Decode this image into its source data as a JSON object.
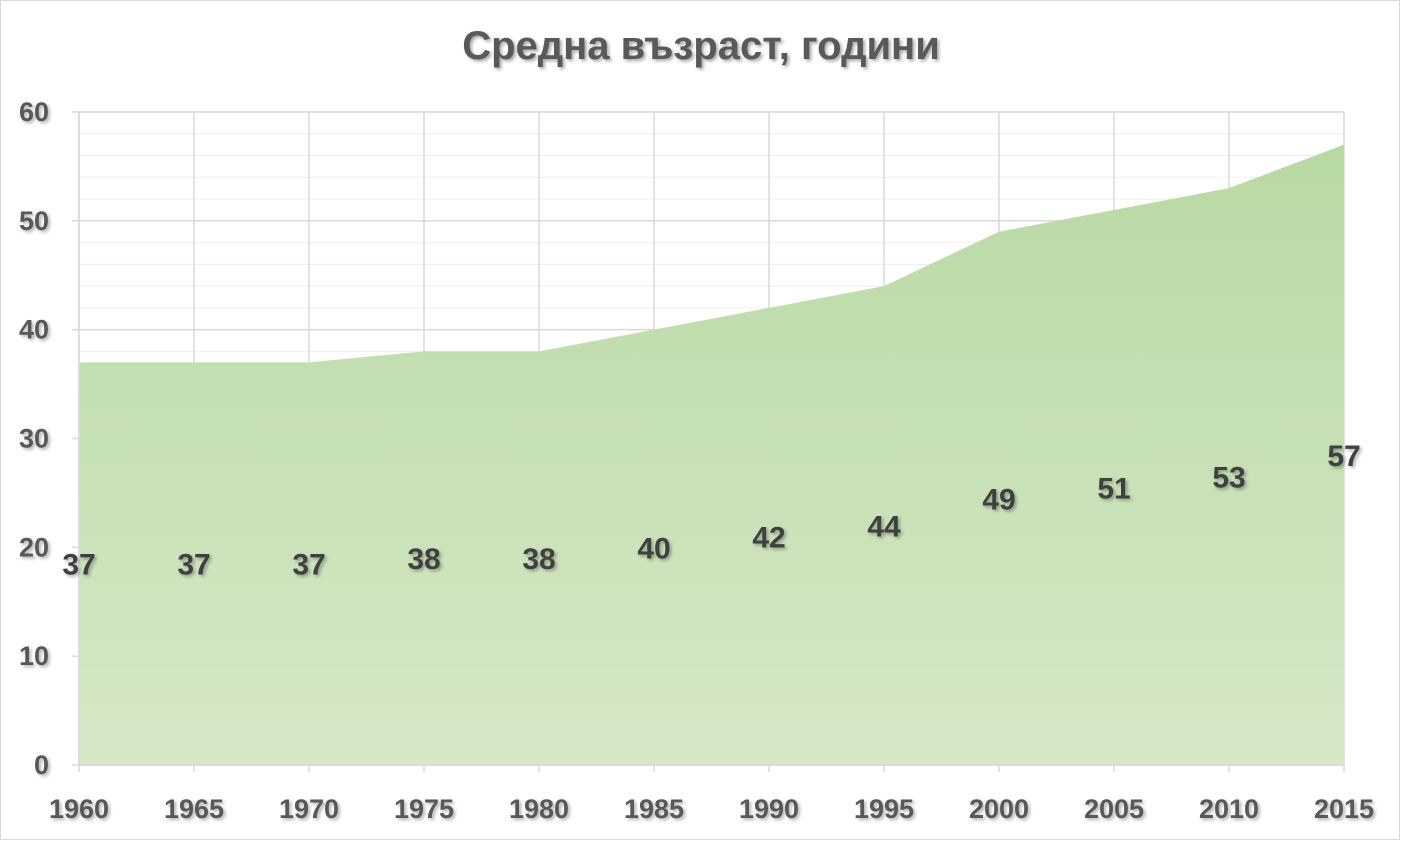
{
  "chart_data": {
    "type": "area",
    "title": "Средна възраст, години",
    "x": [
      1960,
      1965,
      1970,
      1975,
      1980,
      1985,
      1990,
      1995,
      2000,
      2005,
      2010,
      2015
    ],
    "series": [
      {
        "values": [
          37,
          37,
          37,
          38,
          38,
          40,
          42,
          44,
          49,
          51,
          53,
          57
        ]
      }
    ],
    "data_labels": [
      "37",
      "37",
      "37",
      "38",
      "38",
      "40",
      "42",
      "44",
      "49",
      "51",
      "53",
      "57"
    ],
    "x_tick_labels": [
      "1960",
      "1965",
      "1970",
      "1975",
      "1980",
      "1985",
      "1990",
      "1995",
      "2000",
      "2005",
      "2010",
      "2015"
    ],
    "y_tick_labels": [
      "0",
      "10",
      "20",
      "30",
      "40",
      "50",
      "60"
    ],
    "ylim": [
      0,
      60
    ],
    "y_major_step": 10,
    "y_minor_step": 2,
    "grid": true,
    "legend": "none",
    "colors": {
      "area_top": "#b9d9a3",
      "area_bottom": "#d5e8c8",
      "grid_major": "#d9d9d9",
      "grid_minor": "#eeeeee",
      "text": "#595959",
      "label": "#404040"
    }
  }
}
